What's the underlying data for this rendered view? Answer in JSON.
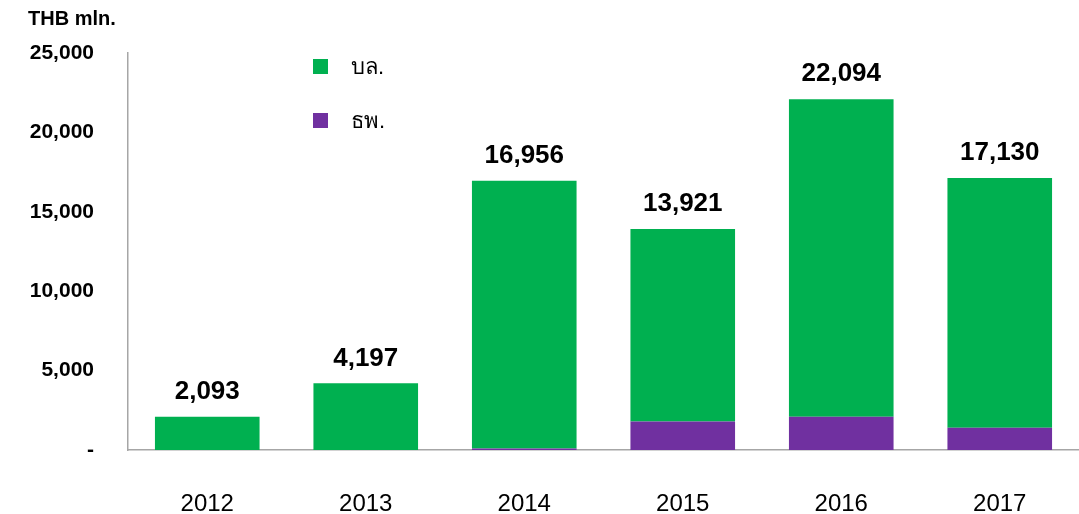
{
  "chart_data": {
    "type": "bar",
    "ylabel": "THB mln.",
    "categories": [
      "2012",
      "2013",
      "2014",
      "2015",
      "2016",
      "2017"
    ],
    "series": [
      {
        "name": "ธพ.",
        "color": "#7030a0",
        "values": [
          0,
          0,
          100,
          1800,
          2100,
          1400
        ]
      },
      {
        "name": "บล.",
        "color": "#00b050",
        "values": [
          2093,
          4197,
          16856,
          12121,
          19994,
          15730
        ]
      }
    ],
    "stacked": true,
    "totals": [
      "2,093",
      "4,197",
      "16,956",
      "13,921",
      "22,094",
      "17,130"
    ],
    "ylim": [
      0,
      25000
    ],
    "yticks": [
      {
        "value": 0,
        "label": "-"
      },
      {
        "value": 5000,
        "label": "5,000"
      },
      {
        "value": 10000,
        "label": "10,000"
      },
      {
        "value": 15000,
        "label": "15,000"
      },
      {
        "value": 20000,
        "label": "20,000"
      },
      {
        "value": 25000,
        "label": "25,000"
      }
    ],
    "grid": false,
    "legend": "top left"
  }
}
